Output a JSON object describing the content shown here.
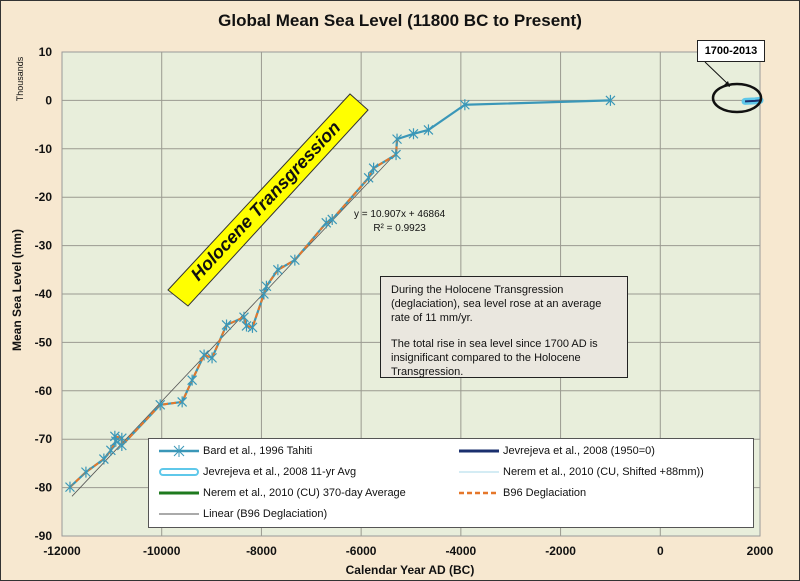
{
  "chart_data": {
    "type": "line",
    "title": "Global Mean Sea Level (11800 BC to Present)",
    "xlabel": "Calendar Year AD (BC)",
    "ylabel": "Mean Sea Level (mm)",
    "ylabel_units_note": "Thousands",
    "xlim": [
      -12000,
      2000
    ],
    "ylim": [
      -90,
      10
    ],
    "x_ticks": [
      "-12000",
      "-10000",
      "-8000",
      "-6000",
      "-4000",
      "-2000",
      "0",
      "2000"
    ],
    "y_ticks": [
      "10",
      "0",
      "-10",
      "-20",
      "-30",
      "-40",
      "-50",
      "-60",
      "-70",
      "-80",
      "-90"
    ],
    "x_tick_values": [
      -12000,
      -10000,
      -8000,
      -6000,
      -4000,
      -2000,
      0,
      2000
    ],
    "y_tick_values": [
      10,
      0,
      -10,
      -20,
      -30,
      -40,
      -50,
      -60,
      -70,
      -80,
      -90
    ],
    "grid": true,
    "legend_position": "bottom",
    "series": [
      {
        "name": "Bard et al., 1996 Tahiti",
        "color": "#3a97b8",
        "marker": "asterisk",
        "x": [
          -11840,
          -11520,
          -11160,
          -11020,
          -10920,
          -10940,
          -10800,
          -10800,
          -10030,
          -9590,
          -9390,
          -9150,
          -8990,
          -8700,
          -8350,
          -8300,
          -8180,
          -7950,
          -7900,
          -7670,
          -7330,
          -6700,
          -6580,
          -5850,
          -5750,
          -5300,
          -5280,
          -4950,
          -4650,
          -3920,
          -1000
        ],
        "y": [
          -79.9,
          -76.8,
          -74.1,
          -72.3,
          -70.4,
          -69.4,
          -69.8,
          -71.3,
          -62.9,
          -62.3,
          -57.8,
          -52.6,
          -53.2,
          -46.4,
          -44.8,
          -46.6,
          -46.9,
          -40.0,
          -38.4,
          -35.0,
          -33.0,
          -25.3,
          -24.6,
          -16.0,
          -14.0,
          -11.2,
          -8.0,
          -6.9,
          -6.1,
          -0.9,
          0.0
        ]
      },
      {
        "name": "Jevrejeva et al., 2008 (1950=0)",
        "color": "#1a2f6e",
        "x": [
          1700,
          1800,
          1900,
          2000
        ],
        "y": [
          -0.2,
          -0.15,
          -0.1,
          0.0
        ]
      },
      {
        "name": "Jevrejeva et al., 2008 11-yr Avg",
        "color": "#5fc8ea",
        "x": [
          1700,
          1800,
          1900,
          2000
        ],
        "y": [
          -0.2,
          -0.15,
          -0.1,
          0.0
        ]
      },
      {
        "name": "Nerem et al., 2010 (CU, Shifted +88mm))",
        "color": "#a9d8e8",
        "x": [
          1993,
          2013
        ],
        "y": [
          0.0,
          0.05
        ]
      },
      {
        "name": "Nerem et al., 2010 (CU) 370-day Average",
        "color": "#1e7a1e",
        "x": [
          1993,
          2013
        ],
        "y": [
          0.0,
          0.05
        ]
      },
      {
        "name": "B96 Deglaciation",
        "color": "#e5772a",
        "dashed": true,
        "x": [
          -11840,
          -11520,
          -11160,
          -11020,
          -10920,
          -10940,
          -10800,
          -10800,
          -10030,
          -9590,
          -9390,
          -9150,
          -8990,
          -8700,
          -8350,
          -8300,
          -8180,
          -7950,
          -7900,
          -7670,
          -7330,
          -6700,
          -6580,
          -5850,
          -5750,
          -5300,
          -5280
        ],
        "y": [
          -79.9,
          -76.8,
          -74.1,
          -72.3,
          -70.4,
          -69.4,
          -69.8,
          -71.3,
          -62.9,
          -62.3,
          -57.8,
          -52.6,
          -53.2,
          -46.4,
          -44.8,
          -46.6,
          -46.9,
          -40.0,
          -38.4,
          -35.0,
          -33.0,
          -25.3,
          -24.6,
          -16.0,
          -14.0,
          -11.2,
          -8.0
        ]
      },
      {
        "name": "Linear (B96 Deglaciation)",
        "color": "#555555",
        "x": [
          -11800,
          -5300
        ],
        "y": [
          -81.8,
          -10.9
        ]
      }
    ],
    "annotations": {
      "trend_equation": "y = 10.907x + 46864",
      "r_squared": "R² = 0.9923",
      "banner": "Holocene Transgression",
      "callout": "1700-2013",
      "note_paragraphs": [
        "During the Holocene Transgression (deglaciation), sea level rose at an average rate of 11 mm/yr.",
        "The total rise in sea level since 1700 AD is insignificant compared to the Holocene Transgression."
      ]
    }
  }
}
